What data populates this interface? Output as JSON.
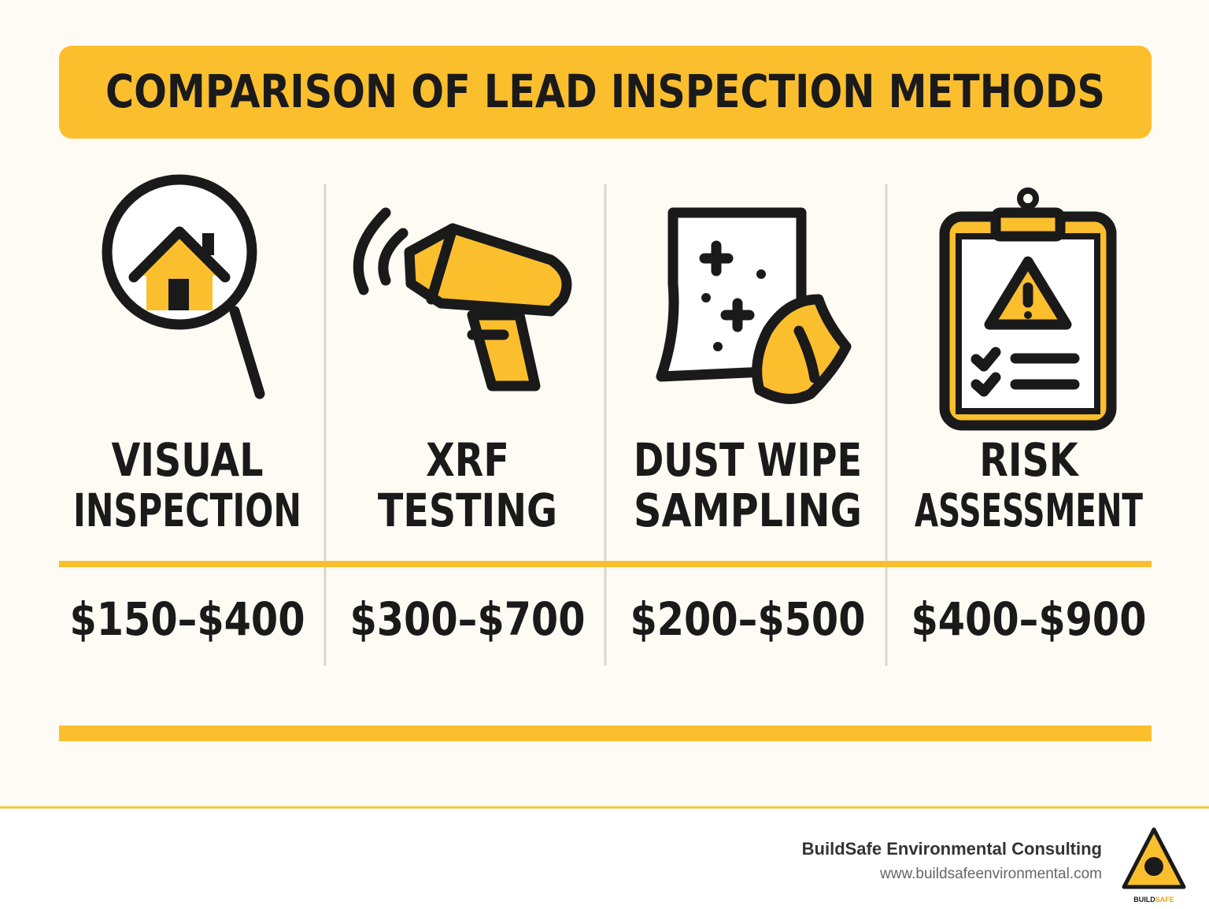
{
  "header": {
    "title": "COMPARISON OF LEAD INSPECTION METHODS"
  },
  "columns": [
    {
      "label": [
        "VISUAL",
        "INSPECTION"
      ],
      "price": "$150–$400"
    },
    {
      "label": [
        "XRF",
        "TESTING"
      ],
      "price": "$300–$700"
    },
    {
      "label": [
        "DUST WIPE",
        "SAMPLING"
      ],
      "price": "$200–$500"
    },
    {
      "label": [
        "RISK",
        "ASSESSMENT"
      ],
      "price": "$400–$900"
    }
  ],
  "footer": {
    "company": "BuildSafe Environmental Consulting",
    "url": "www.buildsafeenvironmental.com",
    "logo": [
      "BUILD",
      "SAFE"
    ]
  }
}
